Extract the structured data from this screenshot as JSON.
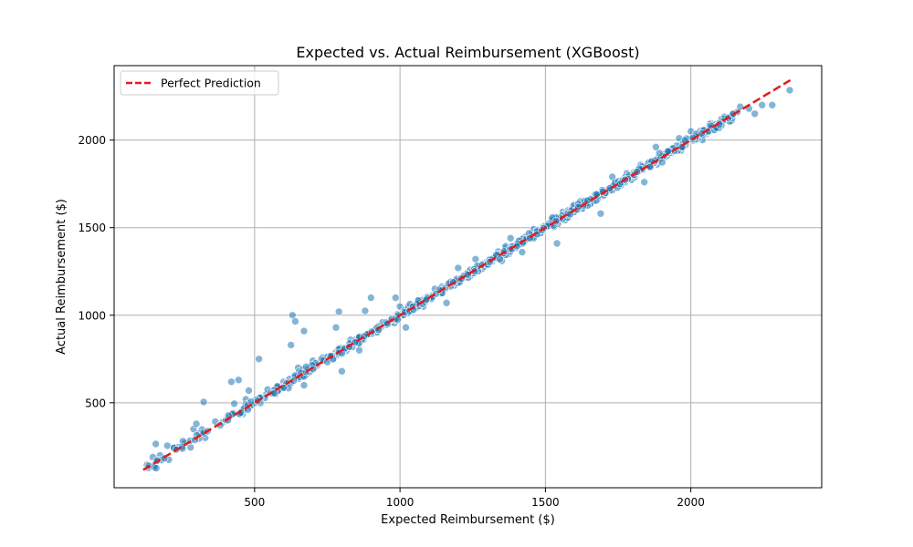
{
  "chart_data": {
    "type": "scatter",
    "title": "Expected vs. Actual Reimbursement (XGBoost)",
    "xlabel": "Expected Reimbursement ($)",
    "ylabel": "Actual Reimbursement ($)",
    "xlim": [
      17,
      2450
    ],
    "ylim": [
      15,
      2425
    ],
    "xticks": [
      500,
      1000,
      1500,
      2000
    ],
    "yticks": [
      500,
      1000,
      1500,
      2000
    ],
    "grid": true,
    "legend_position": "top-left",
    "point_color": "#1f77b4",
    "line_color": "#e41a1c",
    "reference_line": {
      "name": "Perfect Prediction",
      "x": [
        117,
        2342
      ],
      "y": [
        117,
        2342
      ]
    },
    "anchor_points": [
      [
        130,
        145
      ],
      [
        150,
        190
      ],
      [
        160,
        265
      ],
      [
        175,
        200
      ],
      [
        200,
        255
      ],
      [
        205,
        175
      ],
      [
        225,
        245
      ],
      [
        260,
        270
      ],
      [
        280,
        245
      ],
      [
        290,
        350
      ],
      [
        300,
        380
      ],
      [
        325,
        505
      ],
      [
        330,
        300
      ],
      [
        420,
        620
      ],
      [
        445,
        630
      ],
      [
        430,
        495
      ],
      [
        470,
        520
      ],
      [
        480,
        570
      ],
      [
        515,
        750
      ],
      [
        600,
        620
      ],
      [
        625,
        830
      ],
      [
        630,
        1000
      ],
      [
        640,
        965
      ],
      [
        650,
        700
      ],
      [
        670,
        910
      ],
      [
        670,
        600
      ],
      [
        700,
        740
      ],
      [
        750,
        760
      ],
      [
        780,
        930
      ],
      [
        790,
        1020
      ],
      [
        800,
        680
      ],
      [
        830,
        860
      ],
      [
        860,
        800
      ],
      [
        880,
        1025
      ],
      [
        900,
        1100
      ],
      [
        940,
        940
      ],
      [
        985,
        1100
      ],
      [
        1000,
        1050
      ],
      [
        1020,
        930
      ],
      [
        1080,
        1050
      ],
      [
        1120,
        1150
      ],
      [
        1160,
        1070
      ],
      [
        1200,
        1270
      ],
      [
        1260,
        1320
      ],
      [
        1350,
        1310
      ],
      [
        1380,
        1440
      ],
      [
        1420,
        1360
      ],
      [
        1480,
        1480
      ],
      [
        1540,
        1410
      ],
      [
        1560,
        1590
      ],
      [
        1620,
        1650
      ],
      [
        1690,
        1580
      ],
      [
        1730,
        1790
      ],
      [
        1780,
        1810
      ],
      [
        1840,
        1760
      ],
      [
        1880,
        1960
      ],
      [
        1920,
        1920
      ],
      [
        1960,
        2010
      ],
      [
        2000,
        2050
      ],
      [
        2040,
        2000
      ],
      [
        2080,
        2060
      ],
      [
        2140,
        2110
      ],
      [
        2160,
        2160
      ],
      [
        2170,
        2190
      ],
      [
        2200,
        2180
      ],
      [
        2220,
        2150
      ],
      [
        2245,
        2200
      ],
      [
        2280,
        2200
      ],
      [
        2340,
        2285
      ]
    ],
    "noise_bands": [
      {
        "x_range": [
          130,
          400
        ],
        "count": 30,
        "spread": 35
      },
      {
        "x_range": [
          400,
          800
        ],
        "count": 110,
        "spread": 25
      },
      {
        "x_range": [
          800,
          1300
        ],
        "count": 180,
        "spread": 22
      },
      {
        "x_range": [
          1300,
          1800
        ],
        "count": 230,
        "spread": 26
      },
      {
        "x_range": [
          1800,
          2150
        ],
        "count": 150,
        "spread": 24
      }
    ]
  },
  "legend": {
    "label": "Perfect Prediction"
  }
}
